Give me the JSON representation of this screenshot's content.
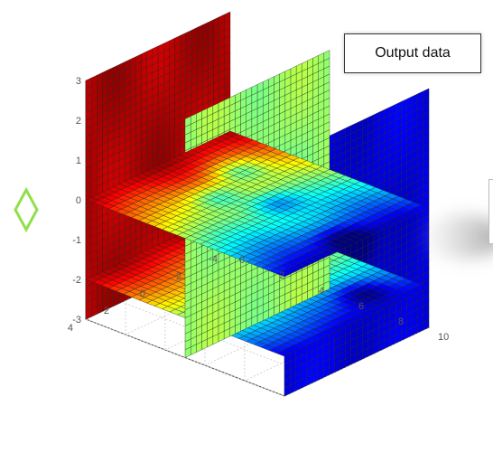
{
  "chart_data": {
    "type": "heatmap",
    "subtype": "3d-slice",
    "title": "",
    "annotation": "Output data",
    "colormap": "jet",
    "grid": true,
    "x_axis": {
      "label": "",
      "range": [
        0,
        10
      ],
      "ticks": [
        "0",
        "2",
        "4",
        "6",
        "8",
        "10"
      ]
    },
    "y_axis": {
      "label": "",
      "range": [
        -4,
        4
      ],
      "ticks": [
        "-4",
        "-2",
        "0",
        "2",
        "4"
      ]
    },
    "z_axis": {
      "label": "",
      "range": [
        -3,
        3
      ],
      "ticks": [
        "-3",
        "-2",
        "-1",
        "0",
        "1",
        "2",
        "3"
      ]
    },
    "slices": [
      {
        "plane": "x",
        "value": 0
      },
      {
        "plane": "x",
        "value": 5
      },
      {
        "plane": "x",
        "value": 10
      },
      {
        "plane": "z",
        "value": 0
      },
      {
        "plane": "z",
        "value": -2
      }
    ]
  },
  "colors": {
    "background": "#ffffff",
    "grid": "#c8c8c8",
    "mesh": "#222222",
    "arrow": "#8fe04a"
  }
}
